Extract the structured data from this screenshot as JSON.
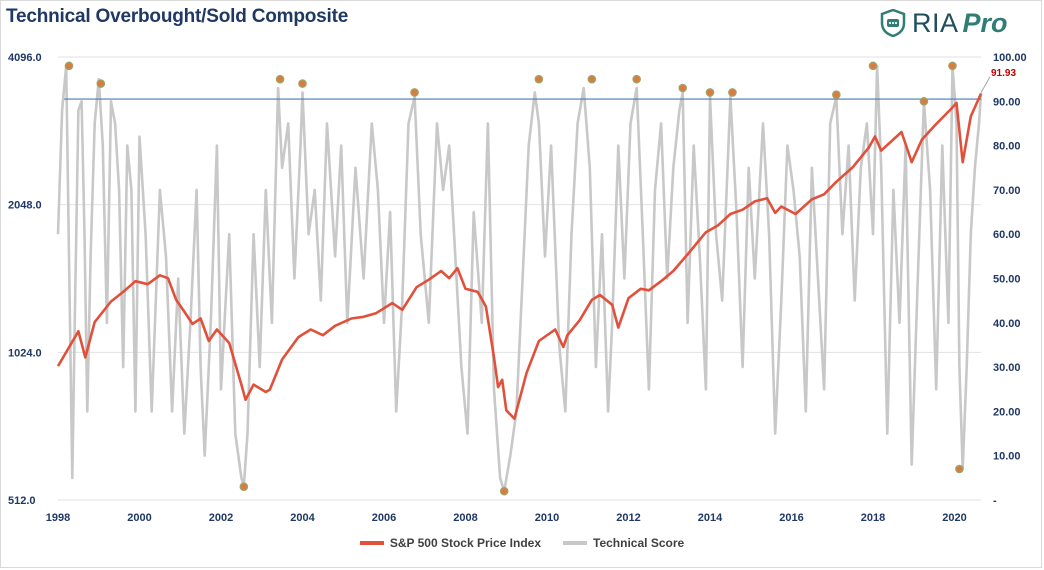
{
  "title": "Technical Overbought/Sold Composite",
  "logo": {
    "icon": "shield-chat-icon",
    "text": "RIA",
    "pro": "Pro"
  },
  "colors": {
    "price": "#e0503a",
    "score": "#c8c8c8",
    "threshold": "#4a7ab5",
    "marker_fill": "#e07a3a",
    "title": "#1f3864",
    "annotation": "#c00000"
  },
  "chart_data": {
    "type": "line",
    "x_ticks": [
      "1998",
      "2000",
      "2002",
      "2004",
      "2006",
      "2008",
      "2010",
      "2012",
      "2014",
      "2016",
      "2018",
      "2020"
    ],
    "x_range": [
      1998,
      2020.65
    ],
    "y_left": {
      "scale": "log2",
      "range": [
        512,
        4096
      ],
      "ticks": [
        "512.0",
        "1024.0",
        "2048.0",
        "4096.0"
      ],
      "tick_values": [
        512,
        1024,
        2048,
        4096
      ]
    },
    "y_right": {
      "range": [
        0,
        100
      ],
      "ticks": [
        "-",
        "10.00",
        "20.00",
        "30.00",
        "40.00",
        "50.00",
        "60.00",
        "70.00",
        "80.00",
        "90.00",
        "100.00"
      ],
      "tick_values": [
        0,
        10,
        20,
        30,
        40,
        50,
        60,
        70,
        80,
        90,
        100
      ]
    },
    "grid": "horizontal",
    "legend_position": "bottom",
    "threshold": 90.5,
    "latest_annotation": "91.93",
    "series": [
      {
        "name": "S&P 500 Stock Price Index",
        "axis": "left",
        "x": [
          1998.0,
          1998.5,
          1998.67,
          1998.9,
          1999.3,
          1999.6,
          1999.9,
          2000.2,
          2000.5,
          2000.7,
          2000.9,
          2001.1,
          2001.3,
          2001.5,
          2001.7,
          2001.9,
          2002.2,
          2002.5,
          2002.6,
          2002.8,
          2003.1,
          2003.2,
          2003.5,
          2003.9,
          2004.2,
          2004.5,
          2004.8,
          2005.2,
          2005.5,
          2005.8,
          2006.2,
          2006.45,
          2006.8,
          2007.1,
          2007.4,
          2007.6,
          2007.8,
          2008.0,
          2008.3,
          2008.5,
          2008.7,
          2008.8,
          2008.9,
          2009.0,
          2009.2,
          2009.5,
          2009.8,
          2010.2,
          2010.4,
          2010.5,
          2010.8,
          2011.1,
          2011.3,
          2011.6,
          2011.75,
          2012.0,
          2012.3,
          2012.5,
          2012.8,
          2013.1,
          2013.5,
          2013.9,
          2014.2,
          2014.5,
          2014.8,
          2015.1,
          2015.4,
          2015.6,
          2015.75,
          2016.1,
          2016.5,
          2016.8,
          2017.1,
          2017.5,
          2017.9,
          2018.05,
          2018.2,
          2018.7,
          2018.95,
          2019.2,
          2019.5,
          2019.9,
          2020.05,
          2020.2,
          2020.4,
          2020.65
        ],
        "y": [
          960,
          1130,
          1000,
          1180,
          1300,
          1360,
          1430,
          1410,
          1470,
          1450,
          1310,
          1240,
          1170,
          1200,
          1080,
          1140,
          1070,
          880,
          820,
          880,
          850,
          860,
          990,
          1100,
          1140,
          1110,
          1160,
          1200,
          1210,
          1230,
          1290,
          1250,
          1390,
          1440,
          1500,
          1450,
          1520,
          1380,
          1360,
          1270,
          1000,
          870,
          900,
          780,
          750,
          930,
          1080,
          1140,
          1050,
          1110,
          1190,
          1310,
          1340,
          1280,
          1150,
          1320,
          1380,
          1370,
          1430,
          1500,
          1640,
          1800,
          1860,
          1960,
          2000,
          2080,
          2110,
          1970,
          2030,
          1960,
          2100,
          2150,
          2280,
          2440,
          2680,
          2820,
          2640,
          2880,
          2500,
          2780,
          2960,
          3200,
          3300,
          2500,
          3100,
          3450
        ]
      },
      {
        "name": "Technical Score",
        "axis": "right",
        "x": [
          1998.0,
          1998.1,
          1998.2,
          1998.27,
          1998.35,
          1998.42,
          1998.5,
          1998.58,
          1998.65,
          1998.72,
          1998.8,
          1998.9,
          1999.0,
          1999.1,
          1999.2,
          1999.3,
          1999.4,
          1999.5,
          1999.6,
          1999.7,
          1999.8,
          1999.9,
          2000.0,
          2000.15,
          2000.3,
          2000.5,
          2000.65,
          2000.8,
          2000.95,
          2001.1,
          2001.25,
          2001.4,
          2001.5,
          2001.6,
          2001.75,
          2001.9,
          2002.0,
          2002.2,
          2002.35,
          2002.5,
          2002.56,
          2002.65,
          2002.8,
          2002.95,
          2003.1,
          2003.25,
          2003.4,
          2003.5,
          2003.65,
          2003.8,
          2003.95,
          2004.0,
          2004.15,
          2004.3,
          2004.45,
          2004.6,
          2004.8,
          2004.95,
          2005.1,
          2005.3,
          2005.5,
          2005.7,
          2005.85,
          2006.0,
          2006.15,
          2006.3,
          2006.45,
          2006.6,
          2006.75,
          2006.9,
          2007.1,
          2007.3,
          2007.45,
          2007.6,
          2007.75,
          2007.9,
          2008.05,
          2008.2,
          2008.4,
          2008.55,
          2008.7,
          2008.85,
          2008.95,
          2009.1,
          2009.25,
          2009.4,
          2009.55,
          2009.7,
          2009.8,
          2009.95,
          2010.1,
          2010.3,
          2010.45,
          2010.6,
          2010.75,
          2010.9,
          2011.05,
          2011.2,
          2011.35,
          2011.5,
          2011.6,
          2011.75,
          2011.9,
          2012.05,
          2012.2,
          2012.35,
          2012.5,
          2012.65,
          2012.8,
          2012.95,
          2013.1,
          2013.25,
          2013.33,
          2013.45,
          2013.6,
          2013.75,
          2013.9,
          2014.0,
          2014.15,
          2014.3,
          2014.5,
          2014.65,
          2014.8,
          2014.95,
          2015.1,
          2015.3,
          2015.45,
          2015.6,
          2015.75,
          2015.9,
          2016.05,
          2016.2,
          2016.35,
          2016.5,
          2016.65,
          2016.8,
          2016.95,
          2017.1,
          2017.25,
          2017.4,
          2017.55,
          2017.7,
          2017.85,
          2018.0,
          2018.1,
          2018.2,
          2018.35,
          2018.5,
          2018.65,
          2018.8,
          2018.95,
          2019.1,
          2019.25,
          2019.4,
          2019.55,
          2019.7,
          2019.85,
          2019.95,
          2020.05,
          2020.12,
          2020.2,
          2020.3,
          2020.4,
          2020.5,
          2020.6,
          2020.65
        ],
        "y": [
          60,
          88,
          98,
          55,
          5,
          45,
          88,
          90,
          60,
          20,
          55,
          85,
          95,
          80,
          40,
          90,
          85,
          70,
          30,
          80,
          70,
          20,
          82,
          60,
          20,
          70,
          55,
          20,
          50,
          15,
          40,
          70,
          30,
          10,
          40,
          80,
          25,
          60,
          15,
          5,
          3,
          15,
          60,
          30,
          70,
          40,
          93,
          75,
          85,
          50,
          80,
          92,
          60,
          70,
          45,
          85,
          55,
          80,
          40,
          75,
          50,
          85,
          70,
          40,
          65,
          20,
          45,
          85,
          91,
          60,
          40,
          85,
          70,
          80,
          55,
          30,
          15,
          65,
          40,
          85,
          25,
          5,
          2,
          10,
          20,
          50,
          80,
          92,
          85,
          55,
          80,
          35,
          20,
          60,
          85,
          93,
          75,
          30,
          60,
          20,
          40,
          80,
          50,
          85,
          93,
          60,
          25,
          70,
          85,
          50,
          75,
          88,
          92,
          40,
          80,
          55,
          25,
          91,
          60,
          45,
          91,
          65,
          30,
          75,
          50,
          85,
          60,
          15,
          45,
          80,
          70,
          55,
          20,
          75,
          50,
          25,
          85,
          91,
          60,
          80,
          45,
          75,
          85,
          60,
          98,
          75,
          15,
          70,
          40,
          80,
          8,
          50,
          90,
          70,
          25,
          80,
          40,
          98,
          85,
          30,
          7,
          30,
          60,
          75,
          85,
          91.93
        ]
      }
    ],
    "markers": [
      {
        "x": 1998.27,
        "y": 98
      },
      {
        "x": 1999.05,
        "y": 94
      },
      {
        "x": 2002.56,
        "y": 3
      },
      {
        "x": 2003.45,
        "y": 95
      },
      {
        "x": 2004.0,
        "y": 94
      },
      {
        "x": 2006.75,
        "y": 92
      },
      {
        "x": 2008.95,
        "y": 2
      },
      {
        "x": 2009.8,
        "y": 95
      },
      {
        "x": 2011.1,
        "y": 95
      },
      {
        "x": 2012.2,
        "y": 95
      },
      {
        "x": 2013.33,
        "y": 93
      },
      {
        "x": 2014.0,
        "y": 92
      },
      {
        "x": 2014.55,
        "y": 92
      },
      {
        "x": 2017.1,
        "y": 91.5
      },
      {
        "x": 2018.0,
        "y": 98
      },
      {
        "x": 2019.25,
        "y": 90
      },
      {
        "x": 2019.95,
        "y": 98
      },
      {
        "x": 2020.12,
        "y": 7
      }
    ]
  }
}
